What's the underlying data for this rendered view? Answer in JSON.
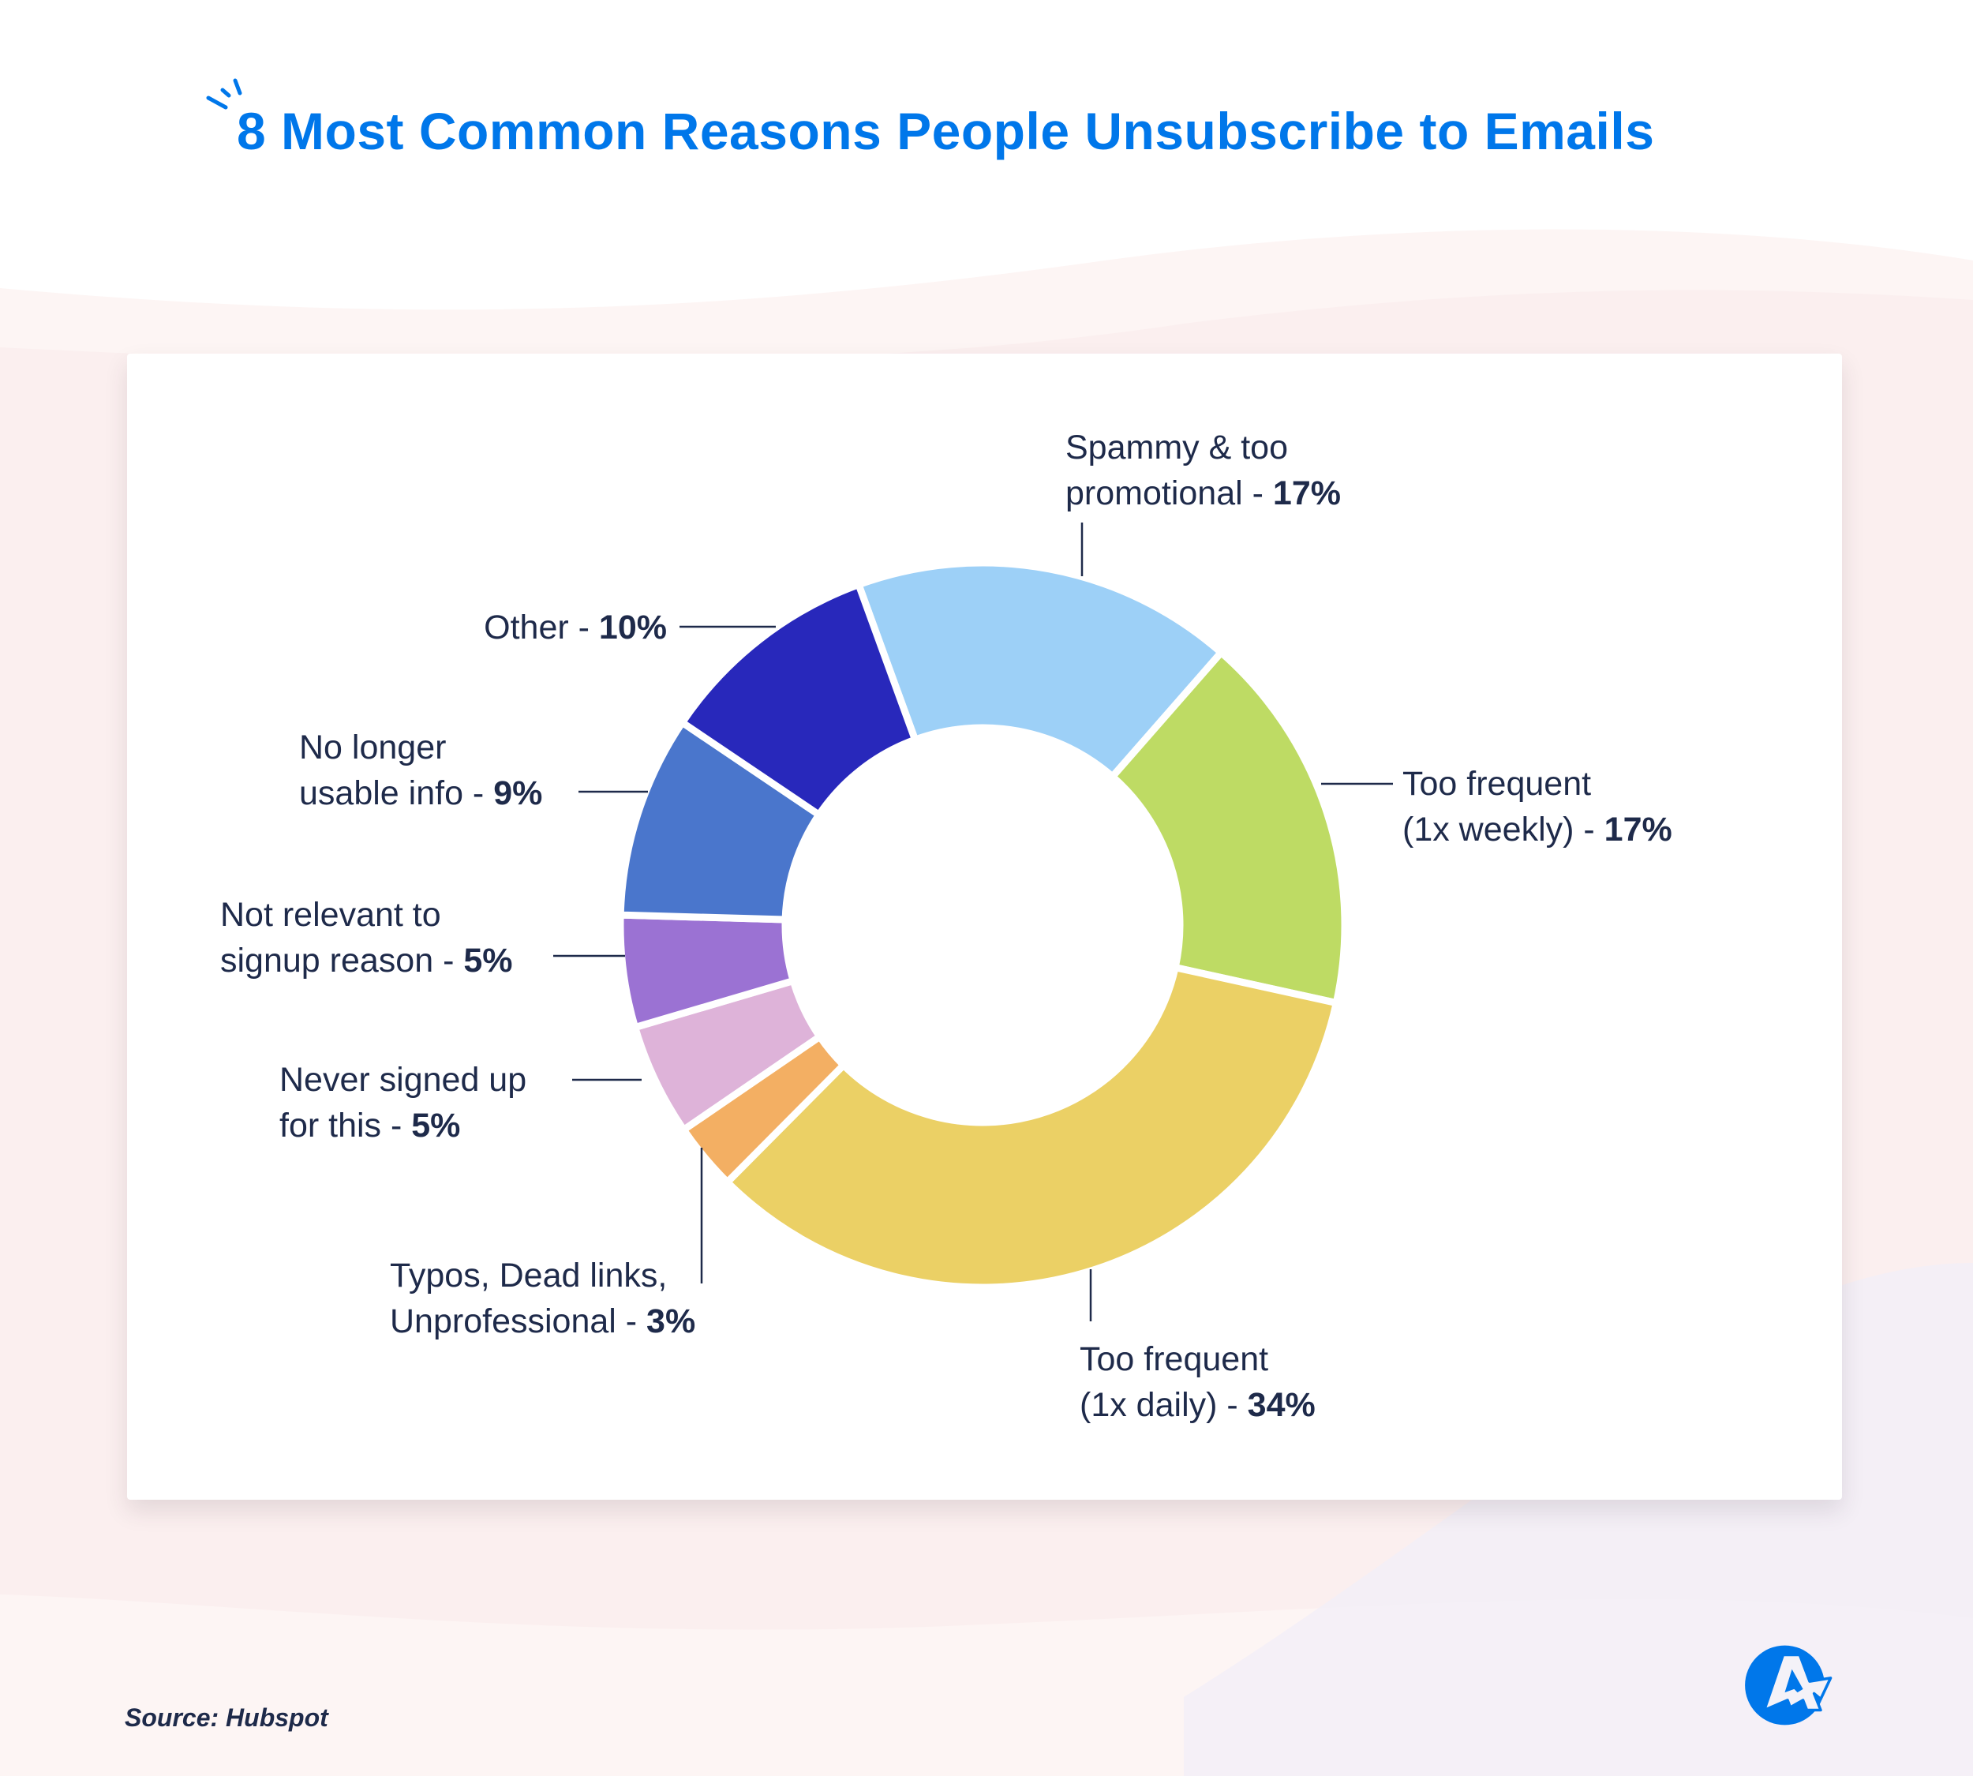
{
  "title": "8 Most Common Reasons People Unsubscribe to Emails",
  "source": "Source: Hubspot",
  "colors": {
    "title": "#0077ea",
    "text": "#1e2a4a",
    "background_band": "#fbefef"
  },
  "logo": {
    "icon": "agorapulse-style-a-arrow-logo",
    "color": "#0077ea"
  },
  "chart_data": {
    "type": "pie",
    "variant": "donut",
    "title": "8 Most Common Reasons People Unsubscribe to Emails",
    "unit": "%",
    "slices": [
      {
        "label_line1": "Spammy & too",
        "label_line2": "promotional - ",
        "value_text": "17%",
        "value": 17,
        "color": "#9dd0f7"
      },
      {
        "label_line1": "Too frequent",
        "label_line2": "(1x weekly) - ",
        "value_text": "17%",
        "value": 17,
        "color": "#bedb64"
      },
      {
        "label_line1": "Too frequent",
        "label_line2": "(1x daily) - ",
        "value_text": "34%",
        "value": 34,
        "color": "#ebd065"
      },
      {
        "label_line1": "Typos, Dead links,",
        "label_line2": "Unprofessional - ",
        "value_text": "3%",
        "value": 3,
        "color": "#f3af63"
      },
      {
        "label_line1": "Never signed up",
        "label_line2": "for this - ",
        "value_text": "5%",
        "value": 5,
        "color": "#deb3d9"
      },
      {
        "label_line1": "Not relevant to",
        "label_line2": "signup reason - ",
        "value_text": "5%",
        "value": 5,
        "color": "#9b72d3"
      },
      {
        "label_line1": "No longer",
        "label_line2": "usable info - ",
        "value_text": "9%",
        "value": 9,
        "color": "#4a76cc"
      },
      {
        "label_line1": "",
        "label_line2": "Other - ",
        "value_text": "10%",
        "value": 10,
        "color": "#2828bb"
      }
    ]
  }
}
